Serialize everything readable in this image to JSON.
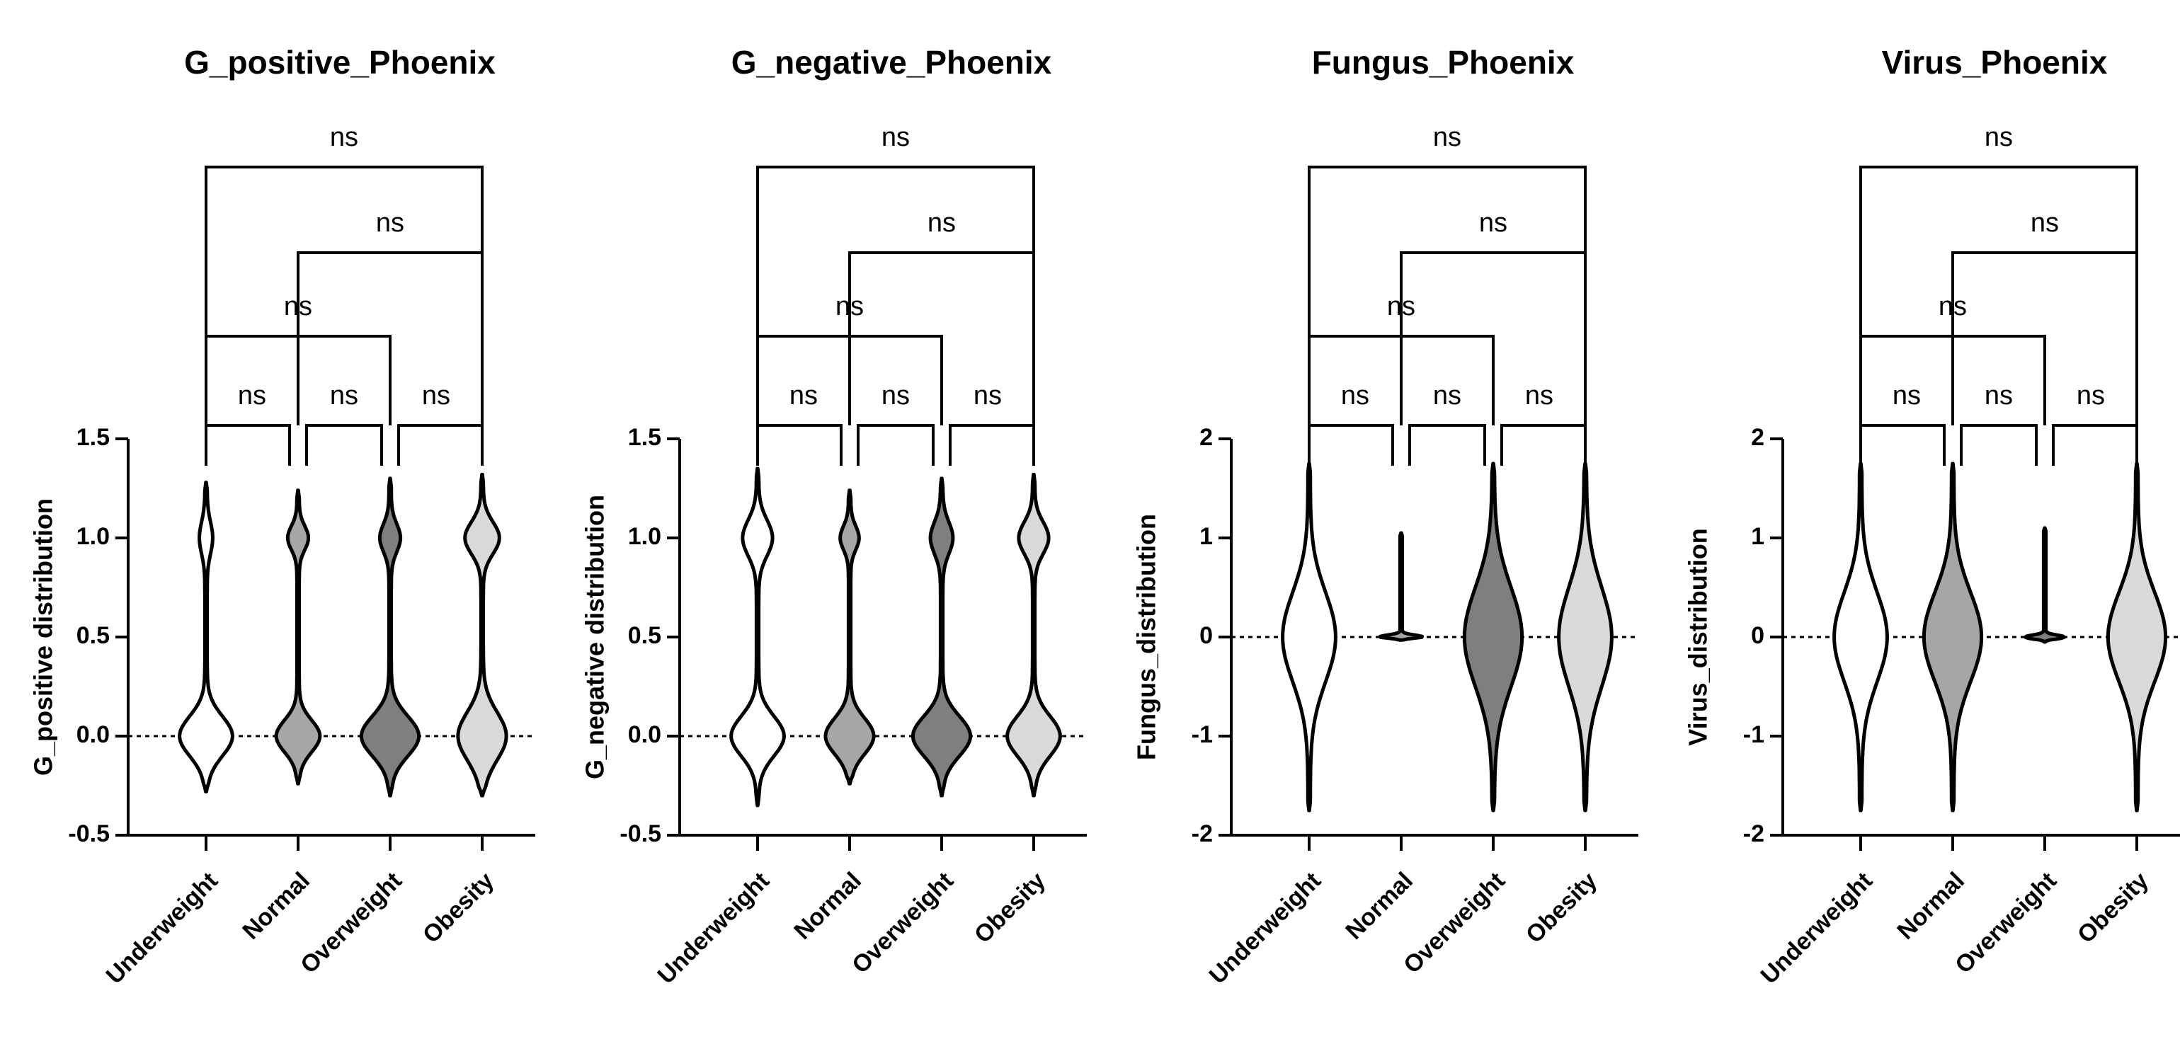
{
  "chart_data": [
    {
      "type": "violin",
      "title": "G_positive_Phoenix",
      "ylabel": "G_positive distribution",
      "categories": [
        "Underweight",
        "Normal",
        "Overweight",
        "Obesity"
      ],
      "ylim": [
        -0.5,
        1.5
      ],
      "yticks": [
        -0.5,
        {
          "value": 0,
          "label": "0.0"
        },
        0.5,
        {
          "value": 1,
          "label": "1.0"
        },
        1.5
      ],
      "reference_line": 0,
      "violins": [
        {
          "color": "#ffffff",
          "min": -0.28,
          "max": 1.28,
          "peaks": [
            {
              "y": 0,
              "width": 0.55,
              "sd": 0.1
            },
            {
              "y": 1,
              "width": 0.12,
              "sd": 0.08
            }
          ]
        },
        {
          "color": "#a6a6a6",
          "min": -0.24,
          "max": 1.24,
          "peaks": [
            {
              "y": 0,
              "width": 0.45,
              "sd": 0.08
            },
            {
              "y": 1,
              "width": 0.2,
              "sd": 0.06
            }
          ]
        },
        {
          "color": "#7f7f7f",
          "min": -0.3,
          "max": 1.3,
          "peaks": [
            {
              "y": 0,
              "width": 0.6,
              "sd": 0.1
            },
            {
              "y": 1,
              "width": 0.2,
              "sd": 0.07
            }
          ]
        },
        {
          "color": "#d9d9d9",
          "min": -0.3,
          "max": 1.32,
          "peaks": [
            {
              "y": 0,
              "width": 0.5,
              "sd": 0.12
            },
            {
              "y": 1,
              "width": 0.35,
              "sd": 0.08
            }
          ]
        }
      ],
      "comparisons": [
        {
          "from": 0,
          "to": 1,
          "label": "ns"
        },
        {
          "from": 1,
          "to": 2,
          "label": "ns"
        },
        {
          "from": 2,
          "to": 3,
          "label": "ns"
        },
        {
          "from": 0,
          "to": 2,
          "label": "ns"
        },
        {
          "from": 1,
          "to": 3,
          "label": "ns"
        },
        {
          "from": 0,
          "to": 3,
          "label": "ns"
        }
      ]
    },
    {
      "type": "violin",
      "title": "G_negative_Phoenix",
      "ylabel": "G_negative distribution",
      "categories": [
        "Underweight",
        "Normal",
        "Overweight",
        "Obesity"
      ],
      "ylim": [
        -0.5,
        1.5
      ],
      "yticks": [
        -0.5,
        {
          "value": 0,
          "label": "0.0"
        },
        0.5,
        {
          "value": 1,
          "label": "1.0"
        },
        1.5
      ],
      "reference_line": 0,
      "violins": [
        {
          "color": "#ffffff",
          "min": -0.35,
          "max": 1.35,
          "peaks": [
            {
              "y": 0,
              "width": 0.55,
              "sd": 0.1
            },
            {
              "y": 1,
              "width": 0.3,
              "sd": 0.09
            }
          ]
        },
        {
          "color": "#a6a6a6",
          "min": -0.24,
          "max": 1.24,
          "peaks": [
            {
              "y": 0,
              "width": 0.5,
              "sd": 0.09
            },
            {
              "y": 1,
              "width": 0.18,
              "sd": 0.06
            }
          ]
        },
        {
          "color": "#7f7f7f",
          "min": -0.3,
          "max": 1.3,
          "peaks": [
            {
              "y": 0,
              "width": 0.6,
              "sd": 0.1
            },
            {
              "y": 1,
              "width": 0.22,
              "sd": 0.08
            }
          ]
        },
        {
          "color": "#d9d9d9",
          "min": -0.3,
          "max": 1.32,
          "peaks": [
            {
              "y": 0,
              "width": 0.55,
              "sd": 0.1
            },
            {
              "y": 1,
              "width": 0.3,
              "sd": 0.08
            }
          ]
        }
      ],
      "comparisons": [
        {
          "from": 0,
          "to": 1,
          "label": "ns"
        },
        {
          "from": 1,
          "to": 2,
          "label": "ns"
        },
        {
          "from": 2,
          "to": 3,
          "label": "ns"
        },
        {
          "from": 0,
          "to": 2,
          "label": "ns"
        },
        {
          "from": 1,
          "to": 3,
          "label": "ns"
        },
        {
          "from": 0,
          "to": 3,
          "label": "ns"
        }
      ]
    },
    {
      "type": "violin",
      "title": "Fungus_Phoenix",
      "ylabel": "Fungus_distribution",
      "categories": [
        "Underweight",
        "Normal",
        "Overweight",
        "Obesity"
      ],
      "ylim": [
        -2,
        2
      ],
      "yticks": [
        -2,
        -1,
        0,
        1,
        2
      ],
      "reference_line": 0,
      "violins": [
        {
          "color": "#ffffff",
          "min": -1.75,
          "max": 1.75,
          "peaks": [
            {
              "y": 0,
              "width": 0.55,
              "sd": 0.45
            }
          ]
        },
        {
          "color": "#a6a6a6",
          "min": -0.03,
          "max": 1.05,
          "peaks": [
            {
              "y": 0,
              "width": 0.45,
              "sd": 0.02
            }
          ]
        },
        {
          "color": "#7f7f7f",
          "min": -1.75,
          "max": 1.75,
          "peaks": [
            {
              "y": 0,
              "width": 0.6,
              "sd": 0.5
            }
          ]
        },
        {
          "color": "#d9d9d9",
          "min": -1.75,
          "max": 1.75,
          "peaks": [
            {
              "y": 0,
              "width": 0.55,
              "sd": 0.5
            }
          ]
        }
      ],
      "comparisons": [
        {
          "from": 0,
          "to": 1,
          "label": "ns"
        },
        {
          "from": 1,
          "to": 2,
          "label": "ns"
        },
        {
          "from": 2,
          "to": 3,
          "label": "ns"
        },
        {
          "from": 0,
          "to": 2,
          "label": "ns"
        },
        {
          "from": 1,
          "to": 3,
          "label": "ns"
        },
        {
          "from": 0,
          "to": 3,
          "label": "ns"
        }
      ]
    },
    {
      "type": "violin",
      "title": "Virus_Phoenix",
      "ylabel": "Virus_distribution",
      "categories": [
        "Underweight",
        "Normal",
        "Overweight",
        "Obesity"
      ],
      "ylim": [
        -2,
        2
      ],
      "yticks": [
        -2,
        -1,
        0,
        1,
        2
      ],
      "reference_line": 0,
      "violins": [
        {
          "color": "#ffffff",
          "min": -1.75,
          "max": 1.75,
          "peaks": [
            {
              "y": 0,
              "width": 0.55,
              "sd": 0.45
            }
          ]
        },
        {
          "color": "#a6a6a6",
          "min": -1.75,
          "max": 1.75,
          "peaks": [
            {
              "y": 0,
              "width": 0.6,
              "sd": 0.45
            }
          ]
        },
        {
          "color": "#7f7f7f",
          "min": -0.05,
          "max": 1.1,
          "peaks": [
            {
              "y": 0,
              "width": 0.4,
              "sd": 0.02
            }
          ]
        },
        {
          "color": "#d9d9d9",
          "min": -1.75,
          "max": 1.75,
          "peaks": [
            {
              "y": 0,
              "width": 0.6,
              "sd": 0.45
            }
          ]
        }
      ],
      "comparisons": [
        {
          "from": 0,
          "to": 1,
          "label": "ns"
        },
        {
          "from": 1,
          "to": 2,
          "label": "ns"
        },
        {
          "from": 2,
          "to": 3,
          "label": "ns"
        },
        {
          "from": 0,
          "to": 2,
          "label": "ns"
        },
        {
          "from": 1,
          "to": 3,
          "label": "ns"
        },
        {
          "from": 0,
          "to": 3,
          "label": "ns"
        }
      ]
    }
  ]
}
